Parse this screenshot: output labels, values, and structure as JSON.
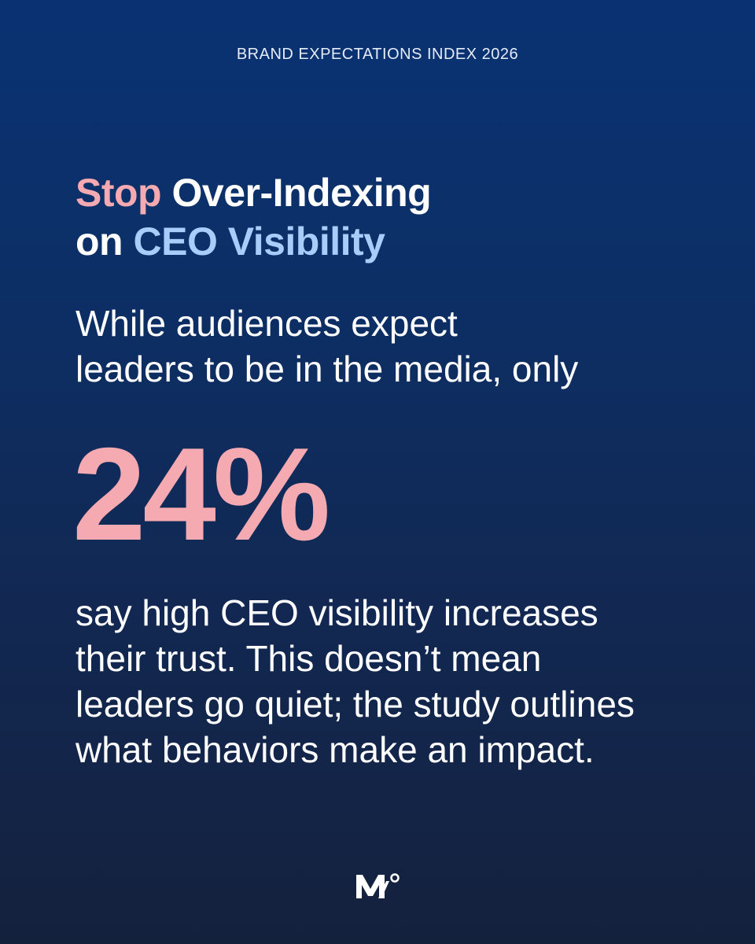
{
  "eyebrow": "BRAND EXPECTATIONS INDEX 2026",
  "headline": {
    "word_stop": "Stop",
    "word_over_indexing": "Over-Indexing",
    "word_on": "on",
    "phrase_ceo_visibility": "CEO Visibility"
  },
  "lead": {
    "line1": "While audiences expect",
    "line2": "leaders to be in the media, only"
  },
  "stat": {
    "value": "24%"
  },
  "body": {
    "line1": "say high CEO visibility increases",
    "line2": "their trust. This doesn’t mean",
    "line3": "leaders go quiet; the study outlines",
    "line4": "what behaviors make an impact."
  },
  "colors": {
    "background_top": "#0a3273",
    "background_bottom": "#14213d",
    "accent_pink": "#f5a9b0",
    "accent_blue": "#a8cdfb",
    "text": "#ffffff"
  },
  "logo": {
    "icon": "brand-logo-icon"
  }
}
